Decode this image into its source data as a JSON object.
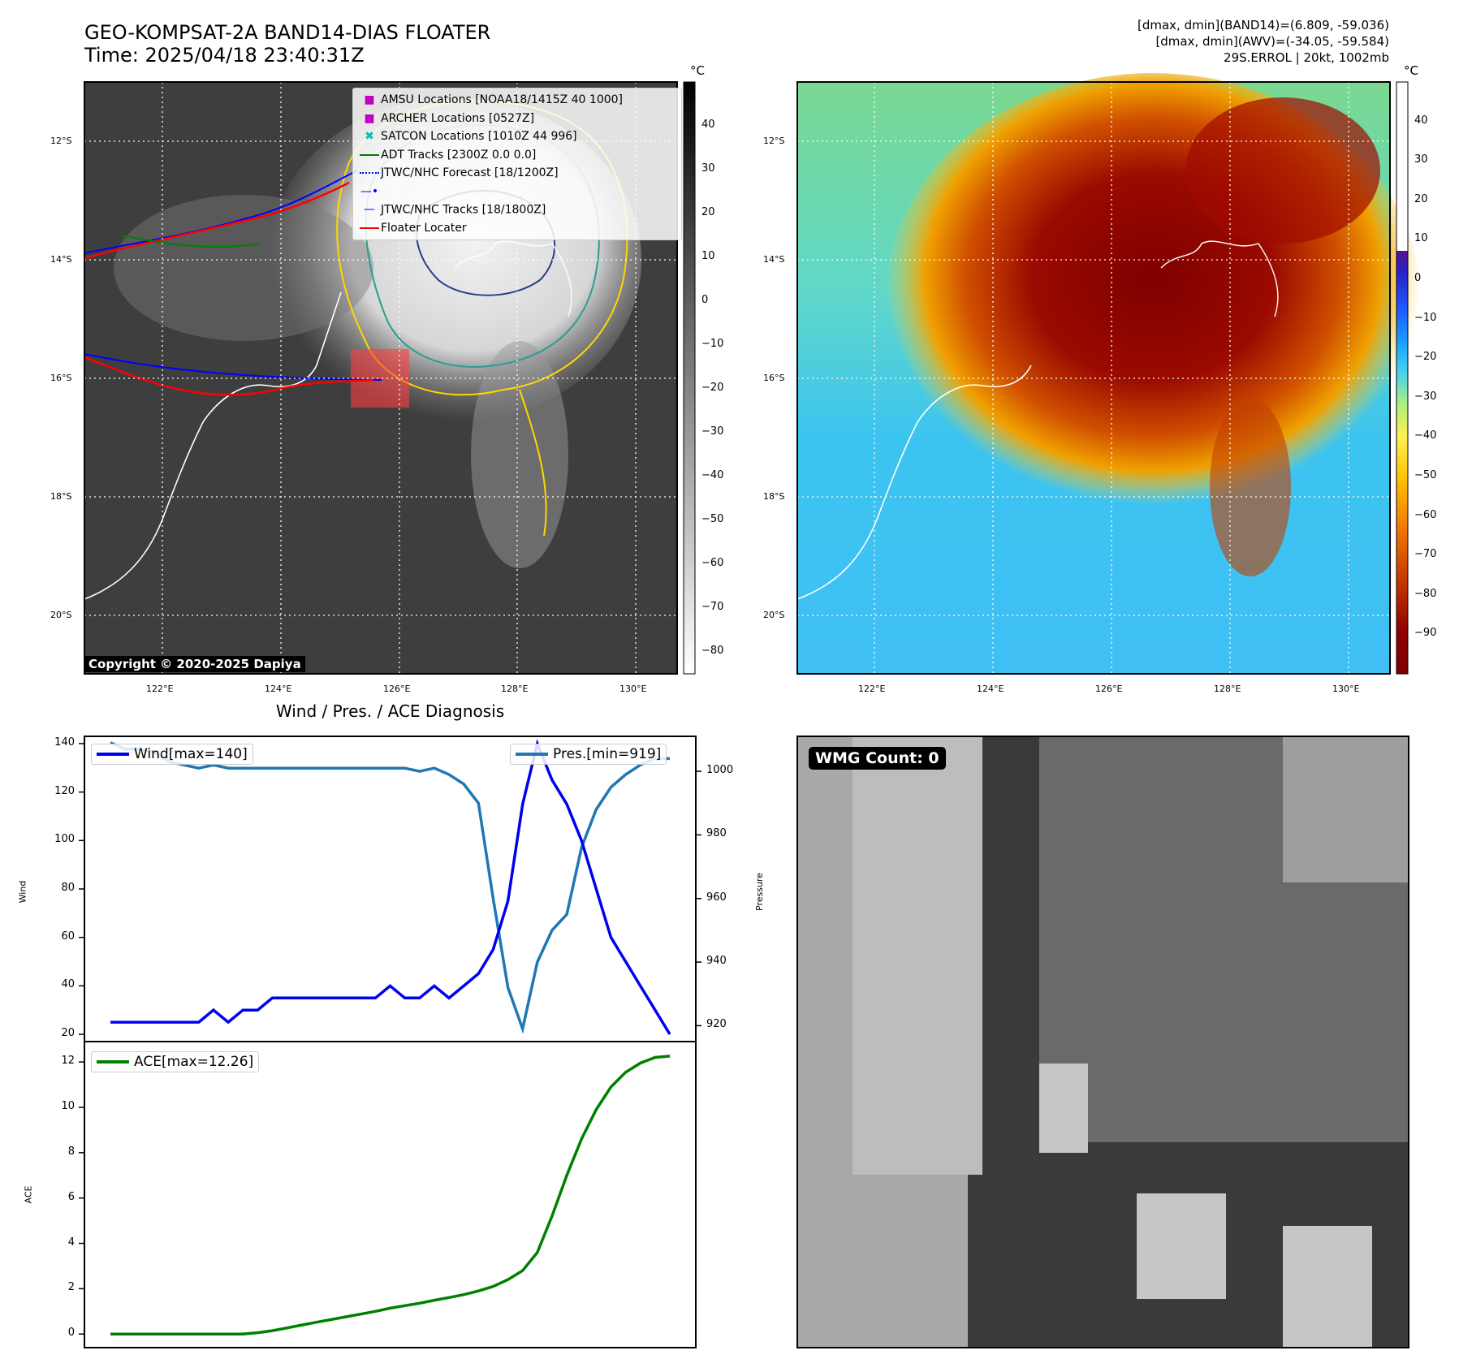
{
  "header": {
    "title_line1": "GEO-KOMPSAT-2A BAND14-DIAS FLOATER",
    "title_line2": "Time: 2025/04/18 23:40:31Z",
    "info_line1": "[dmax, dmin](BAND14)=(6.809, -59.036)",
    "info_line2": "[dmax, dmin](AWV)=(-34.05, -59.584)",
    "info_line3": "29S.ERROL | 20kt, 1002mb"
  },
  "map": {
    "lat_labels": [
      "12°S",
      "14°S",
      "16°S",
      "18°S",
      "20°S"
    ],
    "lon_labels": [
      "122°E",
      "124°E",
      "126°E",
      "128°E",
      "130°E"
    ],
    "copyright": "Copyright © 2020-2025 Dapiya",
    "colorbar_unit": "°C",
    "gray_cbar_ticks": [
      "40",
      "30",
      "20",
      "10",
      "0",
      "−10",
      "−20",
      "−30",
      "−40",
      "−50",
      "−60",
      "−70",
      "−80"
    ],
    "color_cbar_ticks": [
      "40",
      "30",
      "20",
      "10",
      "0",
      "−10",
      "−20",
      "−30",
      "−40",
      "−50",
      "−60",
      "−70",
      "−80",
      "−90"
    ],
    "legend": [
      {
        "label": "AMSU Locations [NOAA18/1415Z 40 1000]",
        "marker": "square",
        "color": "#c000c0"
      },
      {
        "label": "ARCHER Locations [0527Z]",
        "marker": "square",
        "color": "#c000c0"
      },
      {
        "label": "SATCON Locations [1010Z 44 996]",
        "marker": "x",
        "color": "#00c0c0"
      },
      {
        "label": "ADT Tracks [2300Z 0.0 0.0]",
        "marker": "line",
        "color": "#008000"
      },
      {
        "label": "JTWC/NHC Forecast [18/1200Z]",
        "marker": "dotted",
        "color": "#0000ff"
      },
      {
        "label": "JTWC/NHC Tracks [18/1800Z]",
        "marker": "line-dot",
        "color": "#0000ff"
      },
      {
        "label": "Floater Locater",
        "marker": "line",
        "color": "#ff0000"
      }
    ]
  },
  "diagnosis": {
    "title": "Wind / Pres. / ACE Diagnosis",
    "wind_ylabel": "Wind",
    "pres_ylabel": "Pressure",
    "ace_ylabel": "ACE",
    "wind_legend": "Wind[max=140]",
    "pres_legend": "Pres.[min=919]",
    "ace_legend": "ACE[max=12.26]",
    "wind_ticks": [
      "20",
      "40",
      "60",
      "80",
      "100",
      "120",
      "140"
    ],
    "pres_ticks": [
      "920",
      "940",
      "960",
      "980",
      "1000"
    ],
    "ace_ticks": [
      "0",
      "2",
      "4",
      "6",
      "8",
      "10",
      "12"
    ]
  },
  "wmg": {
    "label": "WMG Count: 0"
  },
  "chart_data": [
    {
      "type": "line",
      "title": "Wind / Pres. / ACE Diagnosis",
      "ylabel": "Wind",
      "ylim": [
        17,
        143
      ],
      "series": [
        {
          "name": "Wind[max=140]",
          "color": "#0000ee",
          "values": [
            25,
            25,
            25,
            25,
            25,
            25,
            25,
            30,
            25,
            30,
            30,
            35,
            35,
            35,
            35,
            35,
            35,
            35,
            35,
            40,
            35,
            35,
            40,
            35,
            40,
            45,
            55,
            75,
            115,
            140,
            125,
            115,
            100,
            80,
            60,
            50,
            40,
            30,
            20
          ]
        }
      ]
    },
    {
      "type": "line",
      "ylabel": "Pressure",
      "ylim": [
        915,
        1011
      ],
      "series": [
        {
          "name": "Pres.[min=919]",
          "color": "#1f77b4",
          "values": [
            1009,
            1007,
            1007,
            1006,
            1003,
            1002,
            1001,
            1002,
            1001,
            1001,
            1001,
            1001,
            1001,
            1001,
            1001,
            1001,
            1001,
            1001,
            1001,
            1001,
            1001,
            1000,
            1001,
            999,
            996,
            990,
            960,
            932,
            919,
            940,
            950,
            955,
            976,
            988,
            995,
            999,
            1002,
            1004,
            1004
          ]
        }
      ]
    },
    {
      "type": "line",
      "ylabel": "ACE",
      "ylim": [
        -0.6,
        12.9
      ],
      "series": [
        {
          "name": "ACE[max=12.26]",
          "color": "#008000",
          "values": [
            0,
            0,
            0,
            0,
            0,
            0,
            0,
            0,
            0,
            0,
            0.06,
            0.15,
            0.27,
            0.4,
            0.52,
            0.64,
            0.76,
            0.88,
            1.0,
            1.14,
            1.25,
            1.36,
            1.49,
            1.61,
            1.74,
            1.9,
            2.1,
            2.4,
            2.8,
            3.6,
            5.2,
            7.0,
            8.6,
            9.9,
            10.9,
            11.55,
            11.95,
            12.2,
            12.26
          ]
        }
      ]
    }
  ]
}
